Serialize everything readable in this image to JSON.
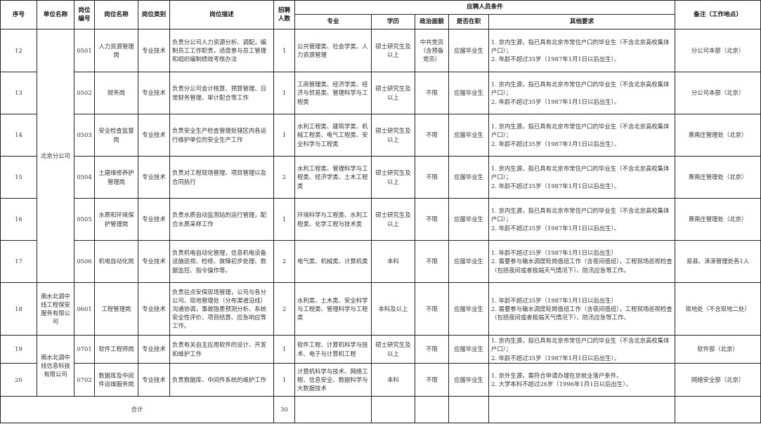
{
  "headers": {
    "seq": "序号",
    "unit": "单位名称",
    "code": "岗位编号",
    "post_name": "岗位名称",
    "post_type": "岗位类别",
    "post_desc": "岗位描述",
    "count": "招聘人数",
    "conditions": "应聘人员条件",
    "major": "专业",
    "education": "学历",
    "political": "政治面貌",
    "employed": "是否在职",
    "other": "其他要求",
    "remark": "备注（工作地点）"
  },
  "units": {
    "beijing": "北京分公司",
    "security": "南水北调中线工程保安服务有限公司",
    "infotech": "南水北调中线信息科技有限公司"
  },
  "rows": [
    {
      "seq": "12",
      "code": "0501",
      "name": "人力资源管理岗",
      "type": "专业技术",
      "desc": "负责分公司人力资源分析、调配，编制员工工作职责，适度参与员工管理和组织编制绩效考核办法",
      "count": "1",
      "major": "公共管理类、社会学类、人力资源管理",
      "edu": "硕士研究生及以上",
      "political": "中共党员（含预备党员）",
      "employed": "应届毕业生",
      "other": [
        "1. 京内生源，指已具有北京市常住户口的毕业生（不含北京高校集体户口）；",
        "2. 年龄不超过35岁（1987年1月1日以后出生）。"
      ],
      "remark": "分公司本部（北京）"
    },
    {
      "seq": "13",
      "code": "0502",
      "name": "财务岗",
      "type": "专业技术",
      "desc": "负责分公司会计核算、预算管理、日常财务管理、审计配合等工作",
      "count": "1",
      "major": "工商管理类、经济学类、经济与贸易类、管理科学与工程类",
      "edu": "硕士研究生及以上",
      "political": "不限",
      "employed": "应届毕业生",
      "other": [
        "1. 京内生源，指已具有北京市常住户口的毕业生（不含北京高校集体户口）；",
        "2. 年龄不超过35岁（1987年1月1日以后出生）。"
      ],
      "remark": "分公司本部（北京）"
    },
    {
      "seq": "14",
      "code": "0503",
      "name": "安全检查监督岗",
      "type": "专业技术",
      "desc": "负责安全生产检查管理处辖区内各运行维护单位的安全生产工作",
      "count": "1",
      "major": "水利工程类、建筑学类、机械工程类、电气工程类、安全科学与工程类",
      "edu": "硕士研究生及以上",
      "political": "不限",
      "employed": "应届毕业生",
      "other": [
        "1. 京内生源，指已具有北京市常住户口的毕业生（不含北京高校集体户口）；",
        "2. 年龄不超过35岁（1987年1月1日以后出生）。"
      ],
      "remark": "惠南庄管理处（北京）"
    },
    {
      "seq": "15",
      "code": "0504",
      "name": "土建维修养护管理岗",
      "type": "专业技术",
      "desc": "负责对工程现场管理、项目管理以及合同执行",
      "count": "2",
      "major": "水利工程类、管理科学与工程类、经济学类、土木工程类",
      "edu": "硕士研究生及以上",
      "political": "不限",
      "employed": "应届毕业生",
      "other": [
        "1. 京内生源，指已具有北京市常住户口的毕业生（不含北京高校集体户口）；",
        "2. 年龄不超过35岁（1987年1月1日以后出生）。"
      ],
      "remark": "惠南庄管理处（北京）"
    },
    {
      "seq": "16",
      "code": "0505",
      "name": "水质和环境保护管理岗",
      "type": "专业技术",
      "desc": "负责水质自动监测站的运行管理，配合水质采样工作",
      "count": "1",
      "major": "环境科学与工程类、水利工程类、化学工程与技术类",
      "edu": "硕士研究生及以上",
      "political": "不限",
      "employed": "应届毕业生",
      "other": [
        "1. 京内生源，指已具有北京市常住户口的毕业生（不含北京高校集体户口）；",
        "2. 年龄不超过35岁（1987年1月1日以后出生）。"
      ],
      "remark": "惠南庄管理处（北京）"
    },
    {
      "seq": "17",
      "code": "0506",
      "name": "机电自动化岗",
      "type": "专业技术",
      "desc": "负责机电自动化管理，信息机电设备设施巡视、检修、故障初步处理、数据监控、指令操作等。",
      "count": "2",
      "major": "电气类、机械类、计算机类",
      "edu": "本科",
      "political": "不限",
      "employed": "应届毕业生",
      "other": [
        "1. 年龄不超过35岁（1987年1月1日以后出生）",
        "2. 需要参与输水调度轮岗值班工作（含夜间值班），工程现场巡视检查（包括夜间或者极端天气情况下）、防汛应急等工作。"
      ],
      "remark": "易县、涞涿管理处各1人"
    },
    {
      "seq": "18",
      "code": "0601",
      "name": "工程管理岗",
      "type": "专业技术",
      "desc": "负责驻点安保现场管理，公司与各分公司、现地管理处（分布渠道沿线）沟通协调，事故隐患预测分析、系统安全性评价、项目结算、应急响应等工作。",
      "count": "2",
      "major": "水利类、土木类、安全科学与工程类、管理科学与工程类",
      "edu": "本科及以上",
      "political": "不限",
      "employed": "应届毕业生",
      "other": [
        "1. 年龄不超过35岁（1987年1月1日以后出生）",
        "2. 需要参与输水调度轮岗值班工作（含夜间值班），工程现场巡视检查（包括夜间或者极端天气情况下）、防汛应急等工作。"
      ],
      "remark": "现地处（不含现地二处）"
    },
    {
      "seq": "19",
      "code": "0701",
      "name": "软件工程师岗",
      "type": "专业技术",
      "desc": "负责有关自主应用软件的设计、开发和维护工作",
      "count": "1",
      "major": "软件工程、计算机科学与技术、电子与计算机工程",
      "edu": "硕士研究生及以上",
      "political": "不限",
      "employed": "应届毕业生",
      "other": [
        "1. 京内生源，指已具有北京市常住户口的毕业生（不含北京高校集体户口）；",
        "2. 年龄不超过35岁（1987年1月1日以后出生）。"
      ],
      "remark": "软件部（北京）"
    },
    {
      "seq": "20",
      "code": "0702",
      "name": "数据库及中间件运维服务岗",
      "type": "专业技术",
      "desc": "负责数据库、中间件系统的维护工作",
      "count": "1",
      "major": "计算机科学与技术、网络工程、信息安全、数据科学与大数据技术",
      "edu": "本科",
      "political": "不限",
      "employed": "应届毕业生",
      "other": [
        "1. 京外生源，需符合申请办理在京就业落户条件。",
        "2. 大学本科不超过26岁（1996年1月1日以后出生）。"
      ],
      "remark": "网络安全部（北京）"
    }
  ],
  "total": {
    "label": "合计",
    "count": "30"
  }
}
